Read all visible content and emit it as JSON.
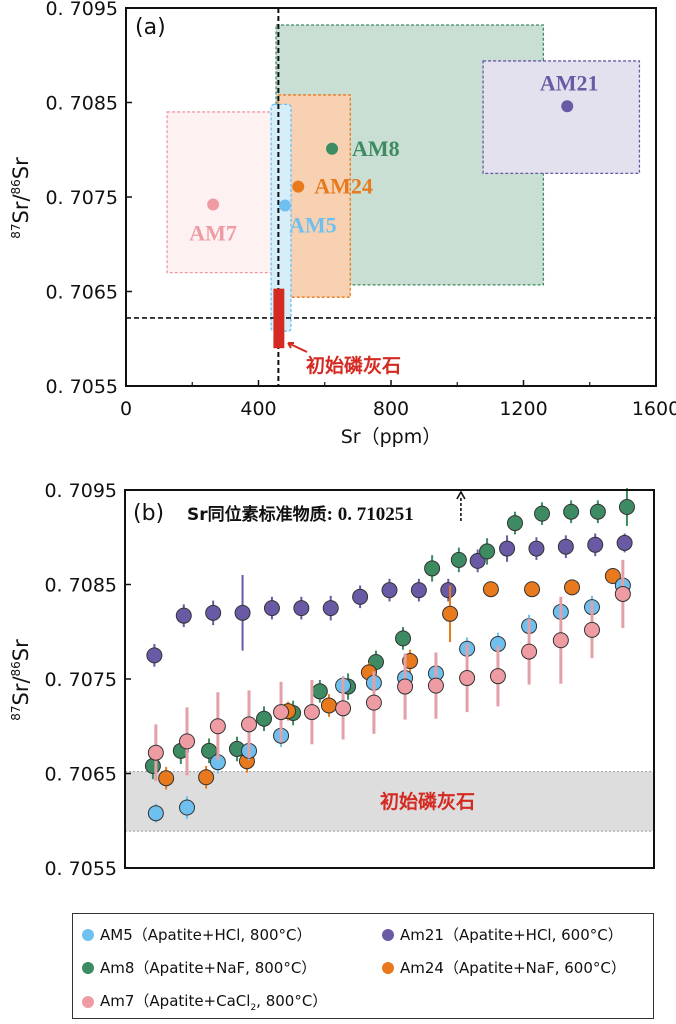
{
  "colors": {
    "AM5": "#6ec1ee",
    "AM8": "#3d8b62",
    "AM7": "#ef9ba3",
    "AM21": "#6a5aa6",
    "AM24": "#e8791c",
    "initial": "#d42a22",
    "band": "#dddddd"
  },
  "chart_data": [
    {
      "panel": "(a)",
      "type": "scatter",
      "xlabel": "Sr（ppm）",
      "ylabel_sup1": "87",
      "ylabel_mid": "Sr/",
      "ylabel_sup2": "86",
      "ylabel_end": "Sr",
      "xlim": [
        0,
        1600
      ],
      "ylim": [
        0.7055,
        0.7095
      ],
      "xticks": [
        0,
        400,
        800,
        1200,
        1600
      ],
      "xtick_labels": [
        "0",
        "400",
        "800",
        "1200",
        "1600"
      ],
      "yticks": [
        0.7055,
        0.7065,
        0.7075,
        0.7085,
        0.7095
      ],
      "ytick_labels": [
        "0. 7055",
        "0. 7065",
        "0. 7075",
        "0. 7085",
        "0. 7095"
      ],
      "ref_vline_x": 460,
      "ref_hline_y": 0.70622,
      "series": [
        {
          "name": "AM8",
          "label": "AM8",
          "point": [
            622,
            0.70801
          ],
          "range_x": [
            453,
            1260
          ],
          "range_y": [
            0.70657,
            0.70932
          ]
        },
        {
          "name": "AM7",
          "label": "AM7",
          "point": [
            263,
            0.70742
          ],
          "range_x": [
            124,
            441
          ],
          "range_y": [
            0.7067,
            0.7084
          ]
        },
        {
          "name": "AM24",
          "label": "AM24",
          "point": [
            520,
            0.70761
          ],
          "range_x": [
            459,
            677
          ],
          "range_y": [
            0.70644,
            0.70858
          ]
        },
        {
          "name": "AM5",
          "label": "AM5",
          "point": [
            480,
            0.70741
          ],
          "range_x": [
            438,
            498
          ],
          "range_y": [
            0.70608,
            0.70848
          ]
        },
        {
          "name": "AM21",
          "label": "AM21",
          "point": [
            1332,
            0.70846
          ],
          "range_x": [
            1078,
            1550
          ],
          "range_y": [
            0.70775,
            0.70894
          ]
        }
      ],
      "initial_apatite": {
        "label": "初始磷灰石",
        "range_x": [
          445,
          478
        ],
        "range_y": [
          0.7059,
          0.70653
        ]
      }
    },
    {
      "panel": "(b)",
      "type": "scatter",
      "ylabel_sup1": "87",
      "ylabel_mid": "Sr/",
      "ylabel_sup2": "86",
      "ylabel_end": "Sr",
      "xlim": [
        0,
        18
      ],
      "ylim": [
        0.7055,
        0.7095
      ],
      "yticks": [
        0.7055,
        0.7065,
        0.7075,
        0.7085,
        0.7095
      ],
      "ytick_labels": [
        "0. 7055",
        "0. 7065",
        "0. 7075",
        "0. 7085",
        "0. 7095"
      ],
      "standard_label": "Sr同位素标准物质",
      "standard_value": ": 0. 710251",
      "standard_x": 11.43,
      "initial_band": {
        "label": "初始磷灰石",
        "range_y": [
          0.70589,
          0.70652
        ]
      },
      "series": [
        {
          "name": "AM21",
          "x": [
            1,
            2,
            3,
            4,
            5,
            6,
            7,
            8,
            9,
            10,
            11,
            12,
            13,
            14,
            15,
            16,
            17
          ],
          "y": [
            0.70775,
            0.70817,
            0.7082,
            0.7082,
            0.70825,
            0.70825,
            0.70825,
            0.70837,
            0.70844,
            0.70844,
            0.70844,
            0.70875,
            0.70888,
            0.70888,
            0.7089,
            0.70892,
            0.70894
          ],
          "err": [
            0.00012,
            0.00012,
            0.00013,
            0.0004,
            0.00012,
            0.00012,
            0.00013,
            0.00012,
            0.00012,
            0.00012,
            0.00012,
            0.00012,
            0.00014,
            0.00012,
            0.00012,
            0.00012,
            0.0001
          ]
        },
        {
          "name": "AM8",
          "x": [
            0.95,
            1.9,
            2.86,
            3.81,
            4.73,
            5.72,
            6.63,
            7.59,
            8.54,
            9.46,
            10.45,
            11.36,
            12.32,
            13.27,
            14.19,
            15.18,
            16.09,
            17.08
          ],
          "y": [
            0.70658,
            0.70674,
            0.70674,
            0.70676,
            0.70708,
            0.70714,
            0.70737,
            0.70742,
            0.70768,
            0.70793,
            0.70867,
            0.70876,
            0.70885,
            0.70915,
            0.70925,
            0.70927,
            0.70927,
            0.70932
          ],
          "err": [
            0.00014,
            0.00014,
            0.00013,
            0.00013,
            0.00013,
            0.00013,
            0.00012,
            0.00014,
            0.00012,
            0.00012,
            0.00014,
            0.00013,
            0.00014,
            0.00012,
            0.00012,
            0.00012,
            0.00012,
            0.0002
          ]
        },
        {
          "name": "AM24",
          "x": [
            1.4,
            2.76,
            4.15,
            5.55,
            6.94,
            8.3,
            9.7,
            11.06,
            12.45,
            13.85,
            15.21,
            16.6
          ],
          "y": [
            0.70645,
            0.70646,
            0.70663,
            0.70716,
            0.70722,
            0.70757,
            0.70769,
            0.70819,
            0.70845,
            0.70845,
            0.70847,
            0.70859
          ],
          "err": [
            0.00012,
            0.00012,
            0.00012,
            0.0001,
            0.00012,
            0.0001,
            0.00012,
            0.0003,
            8e-05,
            8e-05,
            8e-05,
            8e-05
          ]
        },
        {
          "name": "AM5",
          "x": [
            1.05,
            2.11,
            3.16,
            4.22,
            5.31,
            7.42,
            8.47,
            9.53,
            10.58,
            11.64,
            12.69,
            13.75,
            14.83,
            15.89,
            16.94
          ],
          "y": [
            0.70608,
            0.70614,
            0.70662,
            0.70674,
            0.7069,
            0.70743,
            0.70746,
            0.70751,
            0.70756,
            0.70782,
            0.70787,
            0.70806,
            0.70821,
            0.70826,
            0.70849
          ],
          "err": [
            0.0001,
            0.00012,
            0.00012,
            0.0001,
            0.00012,
            0.0001,
            0.00012,
            0.00012,
            0.0001,
            0.00012,
            0.00012,
            0.00012,
            0.00012,
            0.00012,
            0.0001
          ]
        },
        {
          "name": "AM7",
          "x": [
            1.05,
            2.11,
            3.16,
            4.22,
            5.31,
            6.36,
            7.42,
            8.47,
            9.53,
            10.58,
            11.64,
            12.69,
            13.75,
            14.83,
            15.89,
            16.94
          ],
          "y": [
            0.70672,
            0.70684,
            0.707,
            0.70702,
            0.70715,
            0.70715,
            0.70719,
            0.70725,
            0.70742,
            0.70743,
            0.70751,
            0.70753,
            0.70779,
            0.70791,
            0.70802,
            0.7084
          ],
          "err": [
            0.0003,
            0.00036,
            0.00036,
            0.00036,
            0.00032,
            0.00034,
            0.00033,
            0.00033,
            0.00035,
            0.00035,
            0.00036,
            0.00032,
            0.00035,
            0.00046,
            0.0003,
            0.00036
          ]
        }
      ]
    }
  ],
  "legend": [
    {
      "key": "AM5",
      "label": "AM5（Apatite+HCl, 800°C）"
    },
    {
      "key": "AM21",
      "label": "Am21（Apatite+HCl, 600°C）"
    },
    {
      "key": "AM8",
      "label": "Am8（Apatite+NaF, 800°C）"
    },
    {
      "key": "AM24",
      "label": "Am24（Apatite+NaF, 600°C）"
    },
    {
      "key": "AM7",
      "label_pre": "Am7（Apatite+CaCl",
      "label_sub": "2",
      "label_post": ", 800°C）"
    }
  ]
}
